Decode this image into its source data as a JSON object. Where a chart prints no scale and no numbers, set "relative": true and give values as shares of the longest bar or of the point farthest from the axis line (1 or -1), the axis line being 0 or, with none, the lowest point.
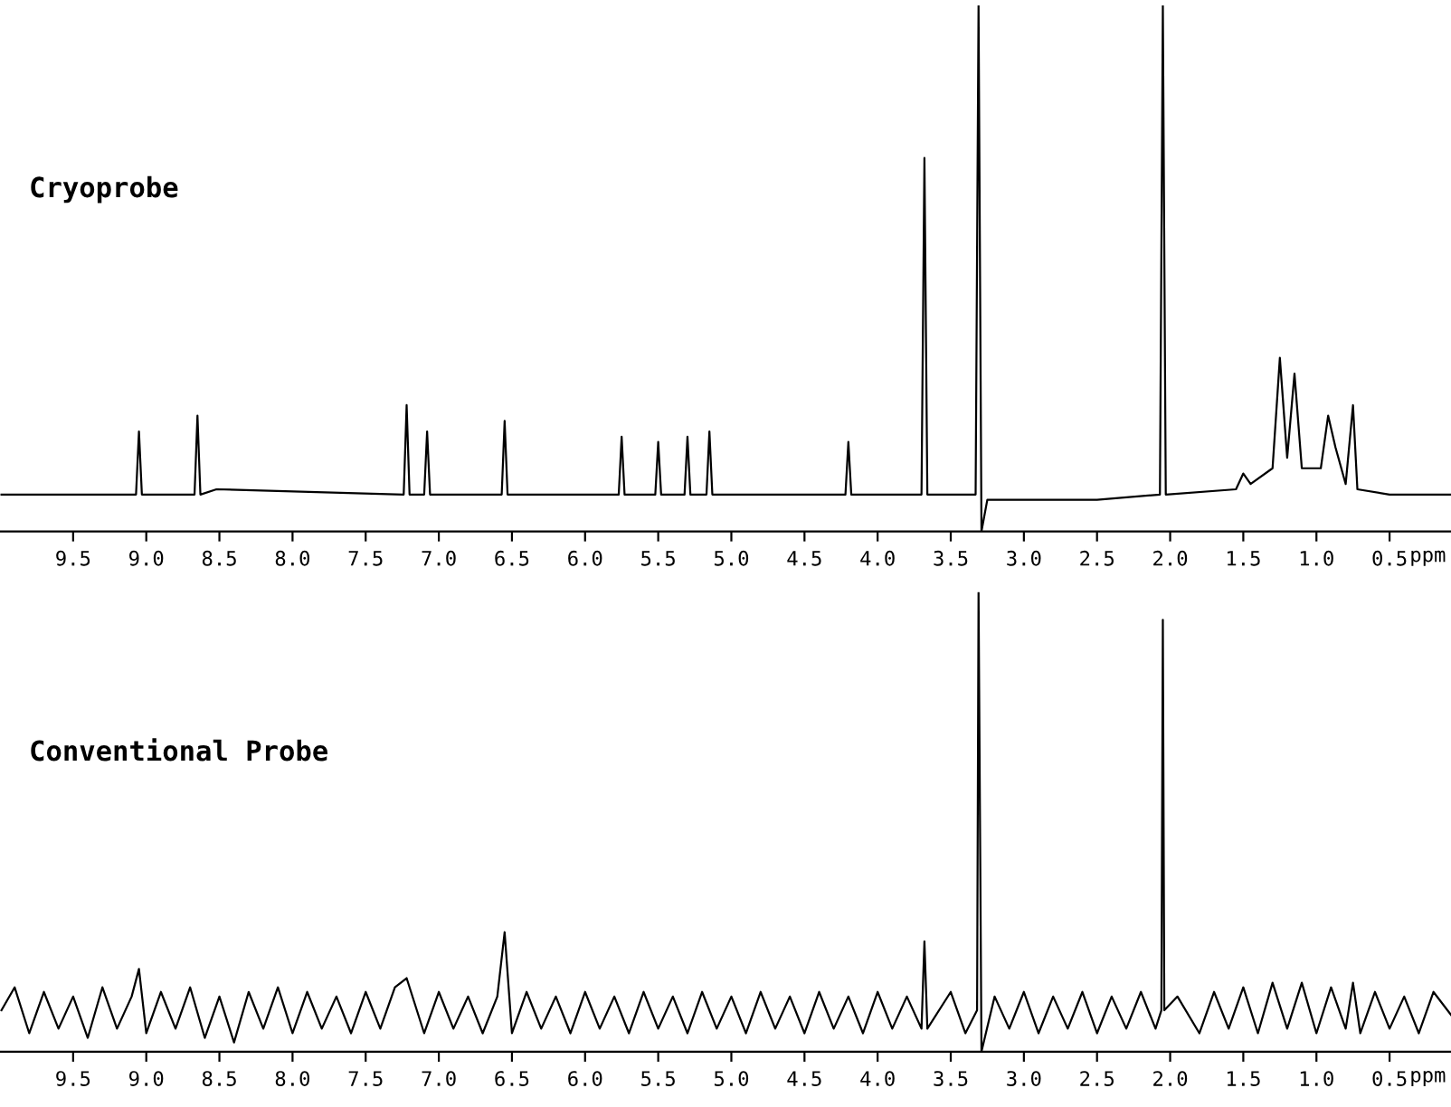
{
  "chart_data": [
    {
      "type": "line",
      "title": "Cryoprobe",
      "xlabel": "ppm",
      "relative": true,
      "xlim": [
        10.0,
        0.08
      ],
      "xticks": [
        9.5,
        {
          "value": 9,
          "label": "9.0"
        },
        8.5,
        {
          "value": 8,
          "label": "8.0"
        },
        7.5,
        {
          "value": 7,
          "label": "7.0"
        },
        6.5,
        {
          "value": 6,
          "label": "6.0"
        },
        5.5,
        {
          "value": 5,
          "label": "5.0"
        },
        4.5,
        {
          "value": 4,
          "label": "4.0"
        },
        3.5,
        {
          "value": 3,
          "label": "3.0"
        },
        2.5,
        {
          "value": 2,
          "label": "2.0"
        },
        1.5,
        {
          "value": 1,
          "label": "1.0"
        },
        0.5
      ],
      "tick_labels": "x",
      "x": [
        9.99,
        9.07,
        9.05,
        9.03,
        8.67,
        8.65,
        8.63,
        8.52,
        7.24,
        7.22,
        7.2,
        7.1,
        7.08,
        7.06,
        6.57,
        6.55,
        6.53,
        5.77,
        5.75,
        5.73,
        5.52,
        5.5,
        5.48,
        5.32,
        5.3,
        5.28,
        5.17,
        5.15,
        5.13,
        4.22,
        4.2,
        4.18,
        3.7,
        3.68,
        3.66,
        3.33,
        3.31,
        3.29,
        3.25,
        2.5,
        2.07,
        2.05,
        2.03,
        1.55,
        1.5,
        1.45,
        1.3,
        1.25,
        1.2,
        1.15,
        1.1,
        0.97,
        0.92,
        0.87,
        0.8,
        0.75,
        0.72,
        0.5,
        0.08
      ],
      "series": [
        {
          "color": "#000000",
          "values": [
            0.07,
            0.07,
            0.19,
            0.07,
            0.07,
            0.22,
            0.07,
            0.08,
            0.07,
            0.24,
            0.07,
            0.07,
            0.19,
            0.07,
            0.07,
            0.21,
            0.07,
            0.07,
            0.18,
            0.07,
            0.07,
            0.17,
            0.07,
            0.07,
            0.18,
            0.07,
            0.07,
            0.19,
            0.07,
            0.07,
            0.17,
            0.07,
            0.07,
            0.71,
            0.07,
            0.07,
            1.0,
            0.0,
            0.06,
            0.06,
            0.07,
            1.0,
            0.07,
            0.08,
            0.11,
            0.09,
            0.12,
            0.33,
            0.14,
            0.3,
            0.12,
            0.12,
            0.22,
            0.16,
            0.09,
            0.24,
            0.08,
            0.07,
            0.07
          ]
        }
      ]
    },
    {
      "type": "line",
      "title": "Conventional Probe",
      "xlabel": "ppm",
      "relative": true,
      "xlim": [
        10.0,
        0.08
      ],
      "xticks": [
        9.5,
        {
          "value": 9,
          "label": "9.0"
        },
        8.5,
        {
          "value": 8,
          "label": "8.0"
        },
        7.5,
        {
          "value": 7,
          "label": "7.0"
        },
        6.5,
        {
          "value": 6,
          "label": "6.0"
        },
        5.5,
        {
          "value": 5,
          "label": "5.0"
        },
        4.5,
        {
          "value": 4,
          "label": "4.0"
        },
        3.5,
        {
          "value": 3,
          "label": "3.0"
        },
        2.5,
        {
          "value": 2,
          "label": "2.0"
        },
        1.5,
        {
          "value": 1,
          "label": "1.0"
        },
        0.5
      ],
      "tick_labels": "x",
      "x": [
        9.99,
        9.9,
        9.8,
        9.7,
        9.6,
        9.5,
        9.4,
        9.3,
        9.2,
        9.1,
        9.05,
        9.0,
        8.9,
        8.8,
        8.7,
        8.6,
        8.5,
        8.4,
        8.3,
        8.2,
        8.1,
        8.0,
        7.9,
        7.8,
        7.7,
        7.6,
        7.5,
        7.4,
        7.3,
        7.22,
        7.1,
        7.0,
        6.9,
        6.8,
        6.7,
        6.6,
        6.55,
        6.5,
        6.4,
        6.3,
        6.2,
        6.1,
        6.0,
        5.9,
        5.8,
        5.7,
        5.6,
        5.5,
        5.4,
        5.3,
        5.2,
        5.1,
        5.0,
        4.9,
        4.8,
        4.7,
        4.6,
        4.5,
        4.4,
        4.3,
        4.2,
        4.1,
        4.0,
        3.9,
        3.8,
        3.7,
        3.68,
        3.66,
        3.5,
        3.4,
        3.32,
        3.31,
        3.29,
        3.2,
        3.1,
        3.0,
        2.9,
        2.8,
        2.7,
        2.6,
        2.5,
        2.4,
        2.3,
        2.2,
        2.1,
        2.06,
        2.05,
        2.04,
        1.95,
        1.8,
        1.7,
        1.6,
        1.5,
        1.4,
        1.3,
        1.2,
        1.1,
        1.0,
        0.9,
        0.8,
        0.75,
        0.7,
        0.6,
        0.5,
        0.4,
        0.3,
        0.2,
        0.08
      ],
      "series": [
        {
          "color": "#000000",
          "values": [
            0.09,
            0.14,
            0.04,
            0.13,
            0.05,
            0.12,
            0.03,
            0.14,
            0.05,
            0.12,
            0.18,
            0.04,
            0.13,
            0.05,
            0.14,
            0.03,
            0.12,
            0.02,
            0.13,
            0.05,
            0.14,
            0.04,
            0.13,
            0.05,
            0.12,
            0.04,
            0.13,
            0.05,
            0.14,
            0.16,
            0.04,
            0.13,
            0.05,
            0.12,
            0.04,
            0.12,
            0.26,
            0.04,
            0.13,
            0.05,
            0.12,
            0.04,
            0.13,
            0.05,
            0.12,
            0.04,
            0.13,
            0.05,
            0.12,
            0.04,
            0.13,
            0.05,
            0.12,
            0.04,
            0.13,
            0.05,
            0.12,
            0.04,
            0.13,
            0.05,
            0.12,
            0.04,
            0.13,
            0.05,
            0.12,
            0.05,
            0.24,
            0.05,
            0.13,
            0.04,
            0.09,
            1.0,
            0.0,
            0.12,
            0.05,
            0.13,
            0.04,
            0.12,
            0.05,
            0.13,
            0.04,
            0.12,
            0.05,
            0.13,
            0.05,
            0.09,
            0.94,
            0.09,
            0.12,
            0.04,
            0.13,
            0.05,
            0.14,
            0.04,
            0.15,
            0.05,
            0.15,
            0.04,
            0.14,
            0.05,
            0.15,
            0.04,
            0.13,
            0.05,
            0.12,
            0.04,
            0.13,
            0.08
          ]
        }
      ]
    }
  ]
}
